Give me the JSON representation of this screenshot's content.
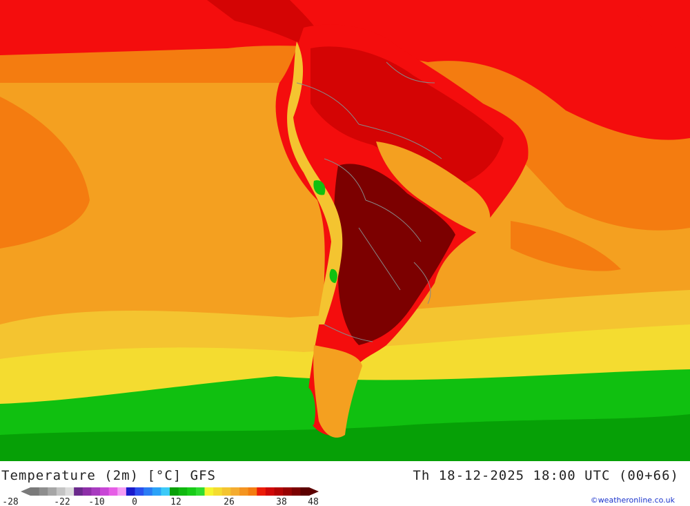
{
  "title": "Temperature (2m) [°C] GFS",
  "timestamp": "Th 18-12-2025 18:00 UTC (00+66)",
  "credit": "©weatheronline.co.uk",
  "legend": {
    "ticks": [
      "-28",
      "-22",
      "-10",
      "0",
      "12",
      "26",
      "38",
      "48"
    ],
    "colors": [
      "#7a7a7a",
      "#8e8e8e",
      "#a6a6a6",
      "#c4c4c4",
      "#dcdcdc",
      "#6b2a8c",
      "#8d2fa8",
      "#a83cc0",
      "#c846d6",
      "#e65ee6",
      "#f49cf4",
      "#1a1acc",
      "#2a50ee",
      "#2a7cf4",
      "#2aa2f8",
      "#3ccaf8",
      "#08a008",
      "#10b810",
      "#18cc18",
      "#30dc30",
      "#f4f430",
      "#f4dc30",
      "#f4c430",
      "#f4ac30",
      "#f49420",
      "#f47c10",
      "#ec1c08",
      "#d00808",
      "#b40404",
      "#980202",
      "#7c0101",
      "#5c0000"
    ]
  },
  "map_colors": {
    "hot": "#7c0000",
    "very_warm": "#d40404",
    "warm": "#f40d0d",
    "orange": "#f47c10",
    "light_orange": "#f4a020",
    "yellow": "#f4dc30",
    "green": "#10c010",
    "dark_green": "#06a006",
    "country_border": "#888888"
  }
}
